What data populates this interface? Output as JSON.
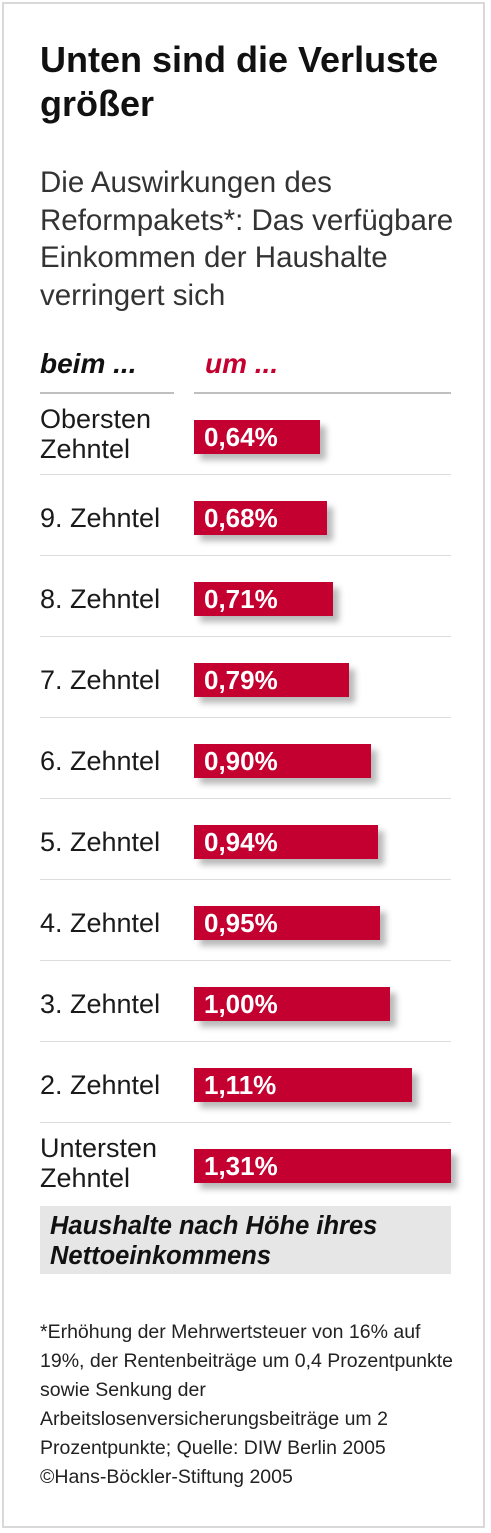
{
  "title": "Unten sind die Verluste größer",
  "subtitle": "Die Auswirkungen des Reformpakets*: Das verfügbare Einkommen der Haushalte verringert sich",
  "column_headers": {
    "left": "beim ...",
    "right": "um ..."
  },
  "footer_label": "Haushalte nach Höhe ihres Nettoeinkommens",
  "footnote": "*Erhöhung der Mehrwertsteuer von 16% auf 19%, der Rentenbeiträge um 0,4 Prozentpunkte sowie Senkung der Arbeitslosenversicherungsbeiträge um 2 Prozentpunkte; Quelle: DIW Berlin 2005",
  "copyright": "©Hans-Böckler-Stiftung 2005",
  "colors": {
    "bar": "#c3002f",
    "accent_text": "#c3002f",
    "footer_bg": "#e6e6e6"
  },
  "chart_data": {
    "type": "bar",
    "orientation": "horizontal",
    "categories": [
      "Obersten Zehntel",
      "9. Zehntel",
      "8. Zehntel",
      "7. Zehntel",
      "6. Zehntel",
      "5. Zehntel",
      "4. Zehntel",
      "3. Zehntel",
      "2. Zehntel",
      "Untersten Zehntel"
    ],
    "values": [
      0.64,
      0.68,
      0.71,
      0.79,
      0.9,
      0.94,
      0.95,
      1.0,
      1.11,
      1.31
    ],
    "value_labels": [
      "0,64%",
      "0,68%",
      "0,71%",
      "0,79%",
      "0,90%",
      "0,94%",
      "0,95%",
      "1,00%",
      "1,11%",
      "1,31%"
    ],
    "xlim": [
      0,
      1.31
    ],
    "grid": false,
    "legend": "none"
  }
}
